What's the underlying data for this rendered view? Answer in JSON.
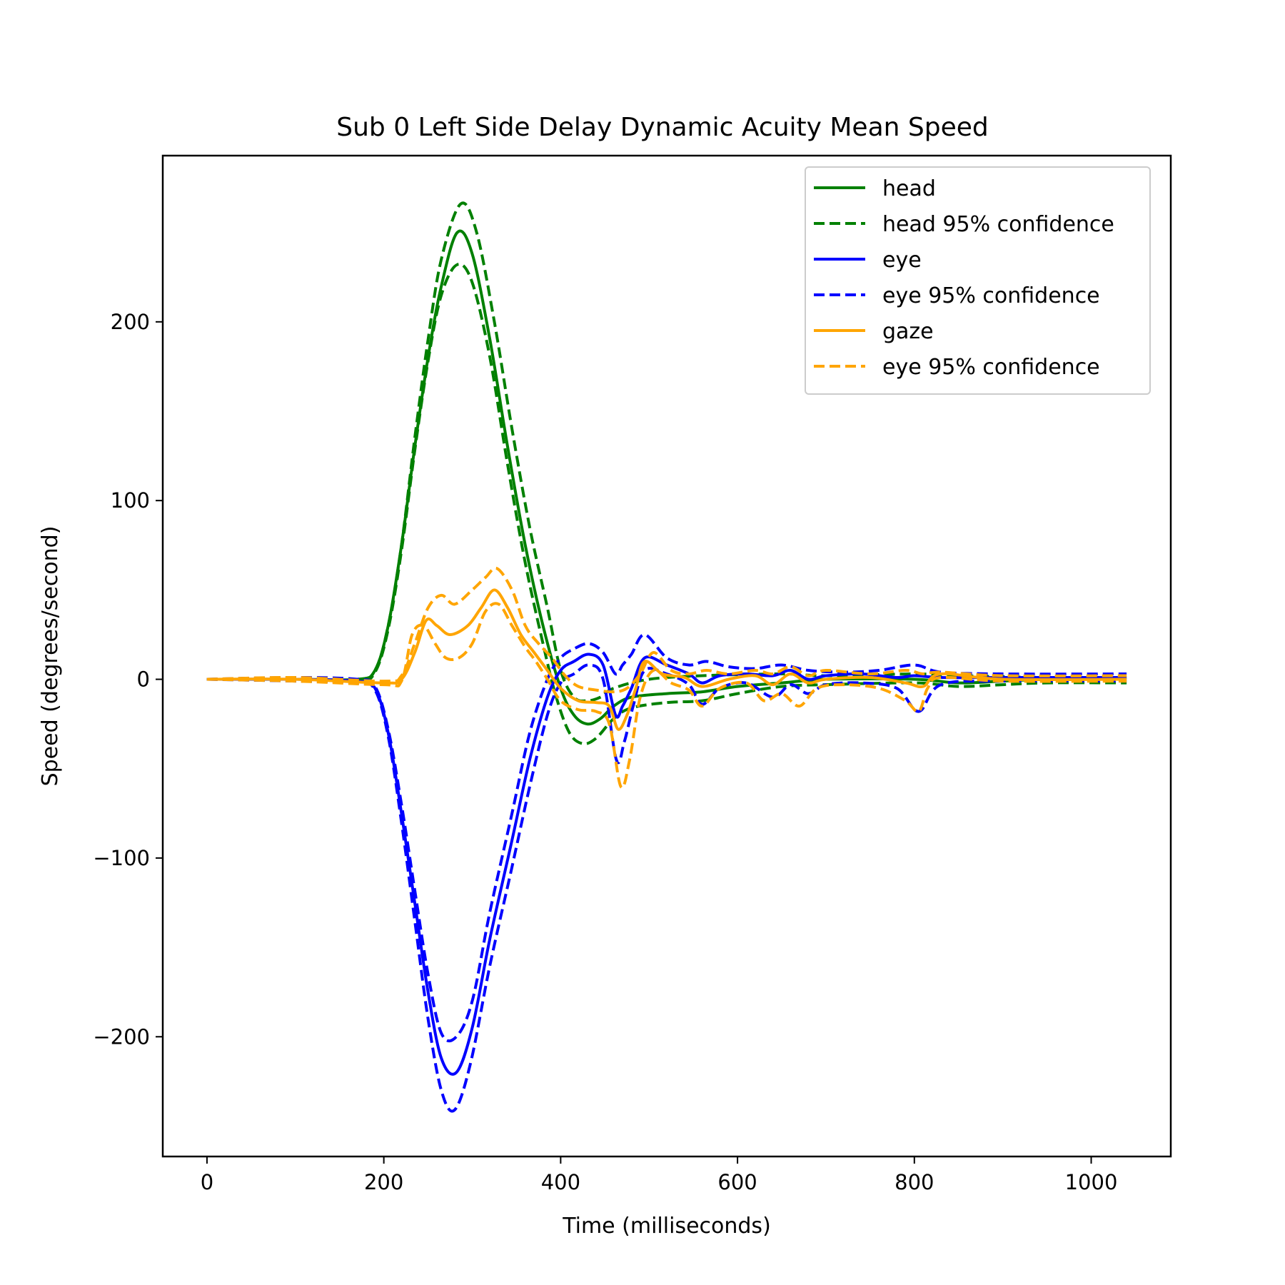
{
  "chart_data": {
    "type": "line",
    "title": "Sub 0 Left Side Delay Dynamic Acuity Mean Speed",
    "xlabel": "Time (milliseconds)",
    "ylabel": "Speed (degrees/second)",
    "xlim": [
      -50,
      1090
    ],
    "ylim": [
      -267,
      293
    ],
    "xticks": [
      0,
      200,
      400,
      600,
      800,
      1000
    ],
    "xtick_labels": [
      "0",
      "200",
      "400",
      "600",
      "800",
      "1000"
    ],
    "yticks": [
      -200,
      -100,
      0,
      100,
      200
    ],
    "ytick_labels": [
      "−200",
      "−100",
      "0",
      "100",
      "200"
    ],
    "grid": false,
    "legend_position": "top-right",
    "series": [
      {
        "name": "head",
        "color": "#008000",
        "dash": false,
        "points": [
          [
            0,
            0
          ],
          [
            100,
            0
          ],
          [
            170,
            0
          ],
          [
            190,
            5
          ],
          [
            205,
            30
          ],
          [
            220,
            75
          ],
          [
            235,
            130
          ],
          [
            250,
            180
          ],
          [
            265,
            220
          ],
          [
            283,
            250
          ],
          [
            300,
            238
          ],
          [
            320,
            190
          ],
          [
            340,
            130
          ],
          [
            360,
            75
          ],
          [
            380,
            30
          ],
          [
            400,
            -5
          ],
          [
            415,
            -20
          ],
          [
            430,
            -25
          ],
          [
            445,
            -22
          ],
          [
            460,
            -15
          ],
          [
            480,
            -10
          ],
          [
            520,
            -8
          ],
          [
            560,
            -7
          ],
          [
            600,
            -4
          ],
          [
            650,
            -2
          ],
          [
            700,
            0
          ],
          [
            800,
            0
          ],
          [
            850,
            -2
          ],
          [
            900,
            -1
          ],
          [
            950,
            0
          ],
          [
            1040,
            0
          ]
        ]
      },
      {
        "name": "head 95% confidence",
        "color": "#008000",
        "dash": true,
        "points": [
          [
            0,
            0
          ],
          [
            100,
            0
          ],
          [
            170,
            0
          ],
          [
            190,
            5
          ],
          [
            205,
            30
          ],
          [
            220,
            75
          ],
          [
            235,
            135
          ],
          [
            250,
            190
          ],
          [
            265,
            235
          ],
          [
            287,
            266
          ],
          [
            305,
            250
          ],
          [
            325,
            200
          ],
          [
            345,
            140
          ],
          [
            365,
            85
          ],
          [
            385,
            40
          ],
          [
            400,
            5
          ],
          [
            415,
            -10
          ],
          [
            430,
            -12
          ],
          [
            445,
            -10
          ],
          [
            460,
            -5
          ],
          [
            500,
            0
          ],
          [
            560,
            2
          ],
          [
            650,
            3
          ],
          [
            700,
            2
          ],
          [
            800,
            3
          ],
          [
            850,
            2
          ],
          [
            950,
            1
          ],
          [
            1040,
            1
          ]
        ]
      },
      {
        "name": "",
        "color": "#008000",
        "dash": true,
        "points": [
          [
            0,
            0
          ],
          [
            100,
            0
          ],
          [
            170,
            -1
          ],
          [
            190,
            4
          ],
          [
            205,
            28
          ],
          [
            220,
            72
          ],
          [
            235,
            128
          ],
          [
            250,
            178
          ],
          [
            265,
            215
          ],
          [
            283,
            232
          ],
          [
            300,
            222
          ],
          [
            320,
            180
          ],
          [
            340,
            120
          ],
          [
            360,
            65
          ],
          [
            380,
            20
          ],
          [
            395,
            -10
          ],
          [
            410,
            -30
          ],
          [
            425,
            -36
          ],
          [
            440,
            -33
          ],
          [
            460,
            -22
          ],
          [
            480,
            -16
          ],
          [
            520,
            -13
          ],
          [
            560,
            -12
          ],
          [
            600,
            -8
          ],
          [
            650,
            -4
          ],
          [
            700,
            -3
          ],
          [
            800,
            -2
          ],
          [
            850,
            -4
          ],
          [
            900,
            -3
          ],
          [
            950,
            -2
          ],
          [
            1040,
            -2
          ]
        ]
      },
      {
        "name": "eye",
        "color": "#0000ff",
        "dash": false,
        "points": [
          [
            0,
            0
          ],
          [
            100,
            0
          ],
          [
            170,
            -1
          ],
          [
            190,
            -5
          ],
          [
            205,
            -30
          ],
          [
            220,
            -75
          ],
          [
            235,
            -125
          ],
          [
            250,
            -175
          ],
          [
            265,
            -212
          ],
          [
            282,
            -220
          ],
          [
            300,
            -195
          ],
          [
            320,
            -145
          ],
          [
            345,
            -90
          ],
          [
            365,
            -45
          ],
          [
            385,
            -10
          ],
          [
            400,
            5
          ],
          [
            415,
            10
          ],
          [
            432,
            14
          ],
          [
            448,
            8
          ],
          [
            462,
            -20
          ],
          [
            470,
            -15
          ],
          [
            480,
            -5
          ],
          [
            495,
            12
          ],
          [
            520,
            8
          ],
          [
            545,
            3
          ],
          [
            560,
            -2
          ],
          [
            580,
            2
          ],
          [
            610,
            3
          ],
          [
            640,
            2
          ],
          [
            660,
            5
          ],
          [
            680,
            0
          ],
          [
            700,
            2
          ],
          [
            740,
            3
          ],
          [
            780,
            1
          ],
          [
            800,
            2
          ],
          [
            830,
            1
          ],
          [
            900,
            1
          ],
          [
            1040,
            1
          ]
        ]
      },
      {
        "name": "eye 95% confidence",
        "color": "#0000ff",
        "dash": true,
        "points": [
          [
            0,
            0
          ],
          [
            100,
            1
          ],
          [
            170,
            0
          ],
          [
            190,
            -4
          ],
          [
            205,
            -28
          ],
          [
            220,
            -70
          ],
          [
            235,
            -118
          ],
          [
            250,
            -165
          ],
          [
            265,
            -198
          ],
          [
            282,
            -200
          ],
          [
            300,
            -180
          ],
          [
            320,
            -130
          ],
          [
            345,
            -75
          ],
          [
            365,
            -30
          ],
          [
            385,
            0
          ],
          [
            400,
            12
          ],
          [
            415,
            17
          ],
          [
            432,
            20
          ],
          [
            448,
            15
          ],
          [
            462,
            3
          ],
          [
            470,
            8
          ],
          [
            480,
            14
          ],
          [
            495,
            25
          ],
          [
            520,
            12
          ],
          [
            545,
            8
          ],
          [
            565,
            10
          ],
          [
            590,
            7
          ],
          [
            620,
            6
          ],
          [
            650,
            8
          ],
          [
            680,
            5
          ],
          [
            720,
            4
          ],
          [
            760,
            5
          ],
          [
            800,
            8
          ],
          [
            830,
            4
          ],
          [
            900,
            3
          ],
          [
            1040,
            3
          ]
        ]
      },
      {
        "name": "",
        "color": "#0000ff",
        "dash": true,
        "points": [
          [
            0,
            0
          ],
          [
            100,
            -1
          ],
          [
            170,
            -2
          ],
          [
            190,
            -6
          ],
          [
            205,
            -32
          ],
          [
            220,
            -80
          ],
          [
            235,
            -135
          ],
          [
            250,
            -190
          ],
          [
            265,
            -230
          ],
          [
            280,
            -241
          ],
          [
            298,
            -215
          ],
          [
            320,
            -160
          ],
          [
            345,
            -105
          ],
          [
            365,
            -60
          ],
          [
            385,
            -20
          ],
          [
            400,
            -2
          ],
          [
            415,
            3
          ],
          [
            432,
            8
          ],
          [
            448,
            0
          ],
          [
            463,
            -45
          ],
          [
            472,
            -35
          ],
          [
            482,
            -15
          ],
          [
            495,
            5
          ],
          [
            520,
            3
          ],
          [
            545,
            -3
          ],
          [
            560,
            -14
          ],
          [
            580,
            -5
          ],
          [
            610,
            -2
          ],
          [
            640,
            -10
          ],
          [
            660,
            -3
          ],
          [
            680,
            -8
          ],
          [
            700,
            -3
          ],
          [
            740,
            -2
          ],
          [
            780,
            -5
          ],
          [
            805,
            -18
          ],
          [
            830,
            -3
          ],
          [
            900,
            -1
          ],
          [
            1040,
            -1
          ]
        ]
      },
      {
        "name": "gaze",
        "color": "#ffa500",
        "dash": false,
        "points": [
          [
            0,
            0
          ],
          [
            100,
            0
          ],
          [
            200,
            -2
          ],
          [
            220,
            0
          ],
          [
            235,
            15
          ],
          [
            248,
            33
          ],
          [
            260,
            30
          ],
          [
            275,
            25
          ],
          [
            295,
            30
          ],
          [
            310,
            40
          ],
          [
            325,
            50
          ],
          [
            340,
            40
          ],
          [
            355,
            25
          ],
          [
            370,
            15
          ],
          [
            385,
            5
          ],
          [
            400,
            -5
          ],
          [
            420,
            -12
          ],
          [
            440,
            -13
          ],
          [
            455,
            -15
          ],
          [
            465,
            -28
          ],
          [
            475,
            -20
          ],
          [
            485,
            -5
          ],
          [
            495,
            10
          ],
          [
            515,
            3
          ],
          [
            540,
            1
          ],
          [
            560,
            -4
          ],
          [
            590,
            0
          ],
          [
            620,
            2
          ],
          [
            640,
            -3
          ],
          [
            660,
            3
          ],
          [
            680,
            -2
          ],
          [
            700,
            0
          ],
          [
            750,
            1
          ],
          [
            790,
            -2
          ],
          [
            810,
            -4
          ],
          [
            830,
            3
          ],
          [
            900,
            0
          ],
          [
            1040,
            0
          ]
        ]
      },
      {
        "name": "eye 95% confidence",
        "color": "#ffa500",
        "dash": true,
        "points": [
          [
            0,
            0
          ],
          [
            100,
            1
          ],
          [
            200,
            -1
          ],
          [
            220,
            2
          ],
          [
            235,
            20
          ],
          [
            250,
            40
          ],
          [
            265,
            47
          ],
          [
            280,
            42
          ],
          [
            300,
            50
          ],
          [
            315,
            57
          ],
          [
            328,
            62
          ],
          [
            345,
            50
          ],
          [
            360,
            30
          ],
          [
            375,
            20
          ],
          [
            390,
            12
          ],
          [
            405,
            2
          ],
          [
            420,
            -4
          ],
          [
            440,
            -6
          ],
          [
            460,
            -7
          ],
          [
            475,
            -5
          ],
          [
            490,
            3
          ],
          [
            505,
            15
          ],
          [
            525,
            5
          ],
          [
            545,
            3
          ],
          [
            565,
            5
          ],
          [
            590,
            3
          ],
          [
            620,
            5
          ],
          [
            640,
            3
          ],
          [
            660,
            7
          ],
          [
            680,
            2
          ],
          [
            700,
            5
          ],
          [
            750,
            3
          ],
          [
            790,
            5
          ],
          [
            810,
            3
          ],
          [
            830,
            4
          ],
          [
            900,
            2
          ],
          [
            1040,
            2
          ]
        ]
      },
      {
        "name": "",
        "color": "#ffa500",
        "dash": true,
        "points": [
          [
            0,
            0
          ],
          [
            100,
            -1
          ],
          [
            200,
            -3
          ],
          [
            220,
            -1
          ],
          [
            232,
            25
          ],
          [
            245,
            30
          ],
          [
            258,
            20
          ],
          [
            270,
            12
          ],
          [
            285,
            12
          ],
          [
            300,
            20
          ],
          [
            315,
            38
          ],
          [
            330,
            42
          ],
          [
            345,
            30
          ],
          [
            360,
            18
          ],
          [
            372,
            10
          ],
          [
            385,
            0
          ],
          [
            400,
            -12
          ],
          [
            420,
            -17
          ],
          [
            440,
            -18
          ],
          [
            455,
            -25
          ],
          [
            468,
            -60
          ],
          [
            478,
            -45
          ],
          [
            490,
            -10
          ],
          [
            505,
            5
          ],
          [
            525,
            -2
          ],
          [
            545,
            -6
          ],
          [
            560,
            -15
          ],
          [
            580,
            -5
          ],
          [
            610,
            -2
          ],
          [
            630,
            -12
          ],
          [
            650,
            -8
          ],
          [
            670,
            -15
          ],
          [
            690,
            -5
          ],
          [
            720,
            -3
          ],
          [
            760,
            -5
          ],
          [
            790,
            -12
          ],
          [
            805,
            -18
          ],
          [
            815,
            -5
          ],
          [
            830,
            1
          ],
          [
            900,
            -1
          ],
          [
            1040,
            -1
          ]
        ]
      }
    ]
  }
}
